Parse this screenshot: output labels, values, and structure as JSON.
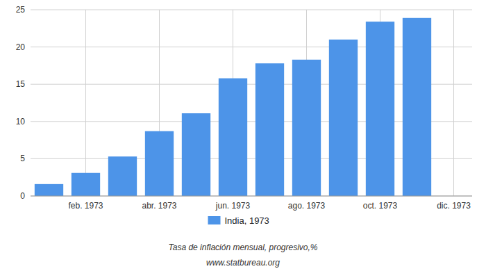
{
  "chart_data": {
    "type": "bar",
    "categories": [
      null,
      "feb. 1973",
      null,
      "abr. 1973",
      null,
      "jun. 1973",
      null,
      "ago. 1973",
      null,
      "oct. 1973",
      null,
      "dic. 1973"
    ],
    "series": [
      {
        "name": "India, 1973",
        "color": "#4d94e8",
        "values": [
          1.6,
          3.1,
          5.3,
          8.7,
          11.1,
          15.8,
          17.8,
          18.3,
          21.0,
          23.4,
          23.9,
          null
        ]
      }
    ],
    "ylim": [
      0,
      25
    ],
    "yticks": [
      0,
      5,
      10,
      15,
      20,
      25
    ],
    "grid": true,
    "legend": "bottom",
    "annotations": [
      "Tasa de inflación mensual, progresivo,%",
      "www.statbureau.org"
    ]
  }
}
